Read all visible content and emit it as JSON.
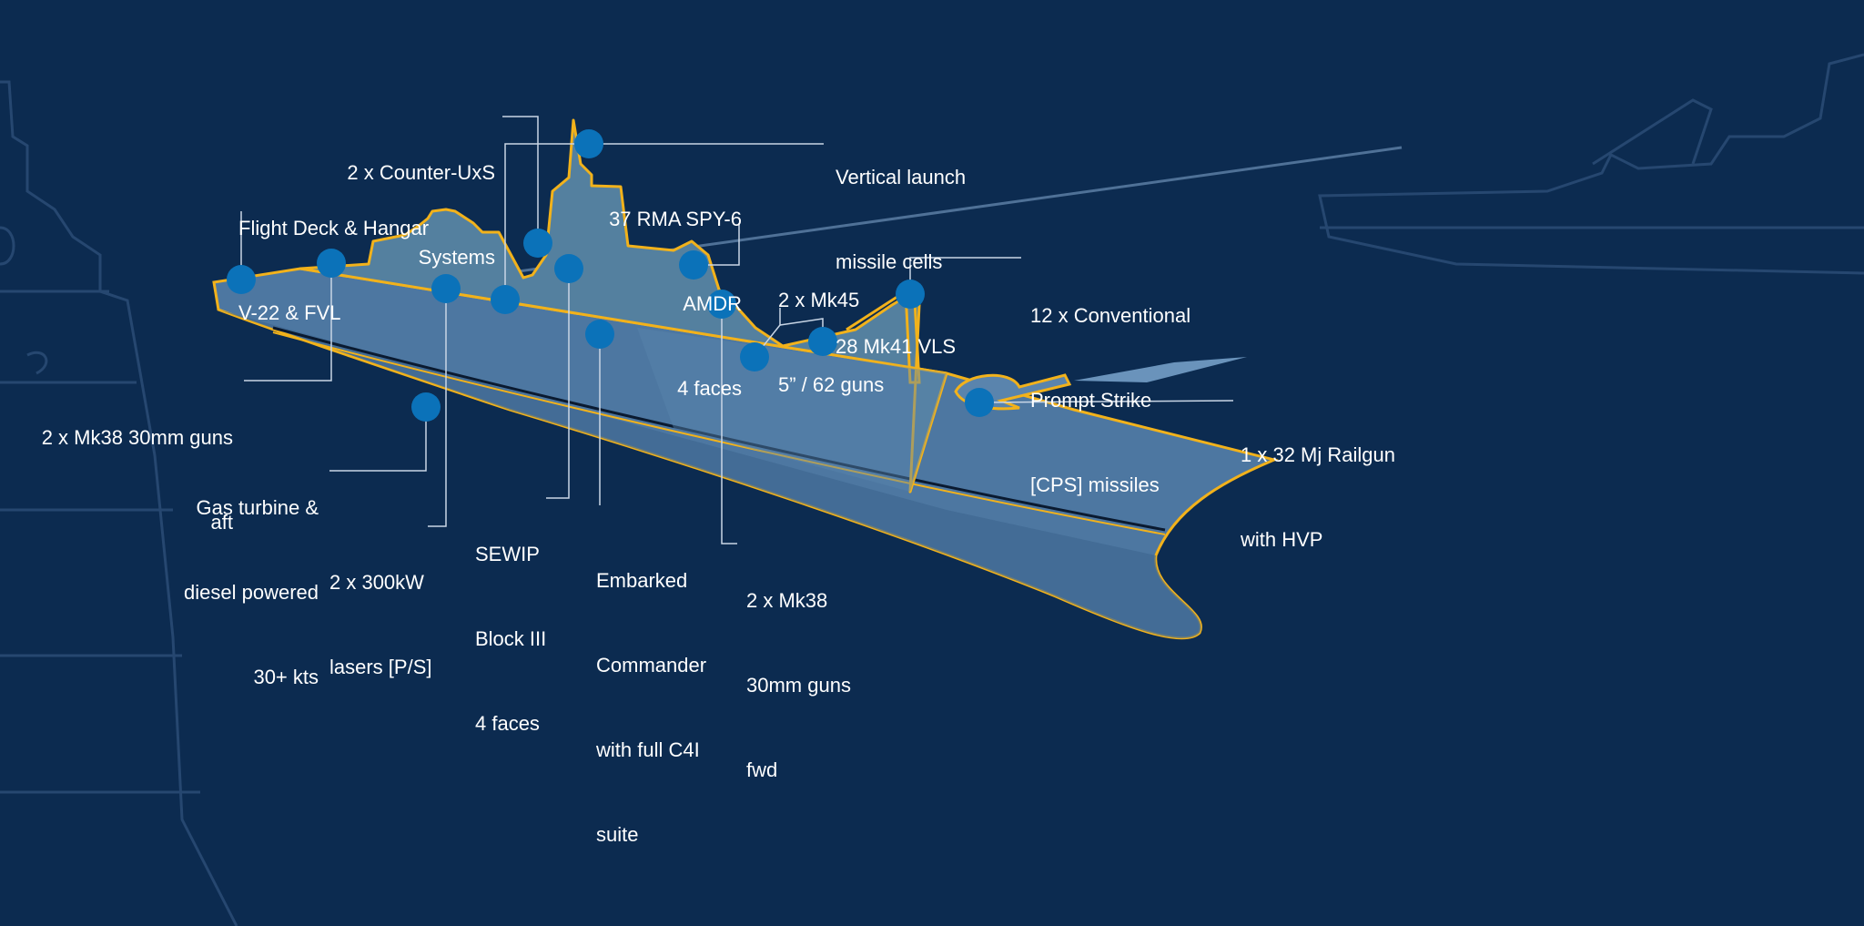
{
  "colors": {
    "background": "#0c2b50",
    "ship_fill": "#4d77a1",
    "outline": "#f2b21b",
    "marker": "#0b72b9",
    "leader_line": "#c9d6e6"
  },
  "callouts": [
    {
      "id": "flight-deck",
      "lines": [
        "Flight Deck & Hangar",
        "V-22 & FVL"
      ]
    },
    {
      "id": "mk38-aft",
      "lines": [
        "2 x Mk38 30mm guns",
        "aft"
      ]
    },
    {
      "id": "gas-turbine",
      "lines": [
        "Gas turbine &",
        "diesel powered",
        "30+ kts"
      ]
    },
    {
      "id": "lasers",
      "lines": [
        "2 x 300kW",
        "lasers [P/S]"
      ]
    },
    {
      "id": "counter-uxs",
      "lines": [
        "2 x Counter-UxS",
        "Systems"
      ]
    },
    {
      "id": "sewip",
      "lines": [
        "SEWIP",
        "Block III",
        "4 faces"
      ]
    },
    {
      "id": "embarked-commander",
      "lines": [
        "Embarked",
        "Commander",
        "with full C4I",
        "suite"
      ]
    },
    {
      "id": "spy6",
      "lines": [
        "37 RMA SPY-6",
        "AMDR",
        "4 faces"
      ]
    },
    {
      "id": "vls",
      "lines": [
        "Vertical launch",
        "missile cells",
        "28 Mk41 VLS"
      ]
    },
    {
      "id": "mk38-fwd",
      "lines": [
        "2 x Mk38",
        "30mm guns",
        "fwd"
      ]
    },
    {
      "id": "mk45",
      "lines": [
        "2 x Mk45",
        "5” / 62 guns"
      ]
    },
    {
      "id": "cps",
      "lines": [
        "12 x Conventional",
        "Prompt Strike",
        "[CPS] missiles"
      ]
    },
    {
      "id": "railgun",
      "lines": [
        "1 x 32 Mj Railgun",
        "with HVP"
      ]
    }
  ]
}
